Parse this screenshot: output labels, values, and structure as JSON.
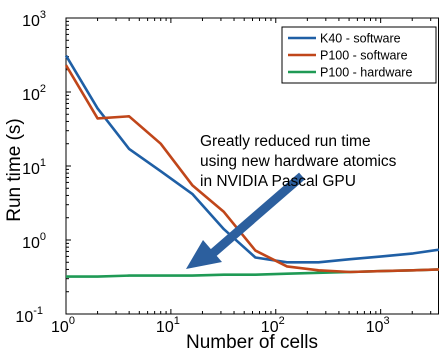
{
  "chart_data": {
    "type": "line",
    "title": "",
    "xlabel": "Number of cells",
    "ylabel": "Run time (s)",
    "xscale": "log",
    "yscale": "log",
    "xlim": [
      1,
      3600
    ],
    "ylim": [
      0.1,
      1000
    ],
    "grid": false,
    "legend_position": "top-right",
    "x_tick_labels": [
      {
        "base": "10",
        "exp": "0"
      },
      {
        "base": "10",
        "exp": "1"
      },
      {
        "base": "10",
        "exp": "2"
      },
      {
        "base": "10",
        "exp": "3"
      }
    ],
    "y_tick_labels": [
      {
        "base": "10",
        "exp": "-1"
      },
      {
        "base": "10",
        "exp": "0"
      },
      {
        "base": "10",
        "exp": "1"
      },
      {
        "base": "10",
        "exp": "2"
      },
      {
        "base": "10",
        "exp": "3"
      }
    ],
    "series": [
      {
        "name": "K40 - software",
        "color": "#1f5fa5",
        "x": [
          1,
          2,
          4,
          8,
          16,
          32,
          64,
          128,
          256,
          512,
          1024,
          2048,
          3600
        ],
        "y": [
          310,
          60,
          17,
          8.5,
          4.2,
          1.4,
          0.58,
          0.5,
          0.5,
          0.55,
          0.6,
          0.66,
          0.74
        ]
      },
      {
        "name": "P100 - software",
        "color": "#c0461a",
        "x": [
          1,
          2,
          4,
          8,
          16,
          32,
          64,
          128,
          256,
          512,
          1024,
          2048,
          3600
        ],
        "y": [
          230,
          44,
          47,
          20,
          5.5,
          2.4,
          0.72,
          0.44,
          0.39,
          0.37,
          0.38,
          0.39,
          0.4
        ]
      },
      {
        "name": "P100 - hardware",
        "color": "#1f9a55",
        "x": [
          1,
          2,
          4,
          8,
          16,
          32,
          64,
          128,
          256,
          512,
          1024,
          2048,
          3600
        ],
        "y": [
          0.32,
          0.32,
          0.33,
          0.33,
          0.33,
          0.34,
          0.34,
          0.35,
          0.36,
          0.37,
          0.38,
          0.39,
          0.4
        ]
      }
    ],
    "annotation": {
      "lines": [
        "Greatly reduced run time",
        "using new hardware atomics",
        "in NVIDIA Pascal GPU"
      ],
      "arrow_color": "#2c5f9e"
    }
  }
}
